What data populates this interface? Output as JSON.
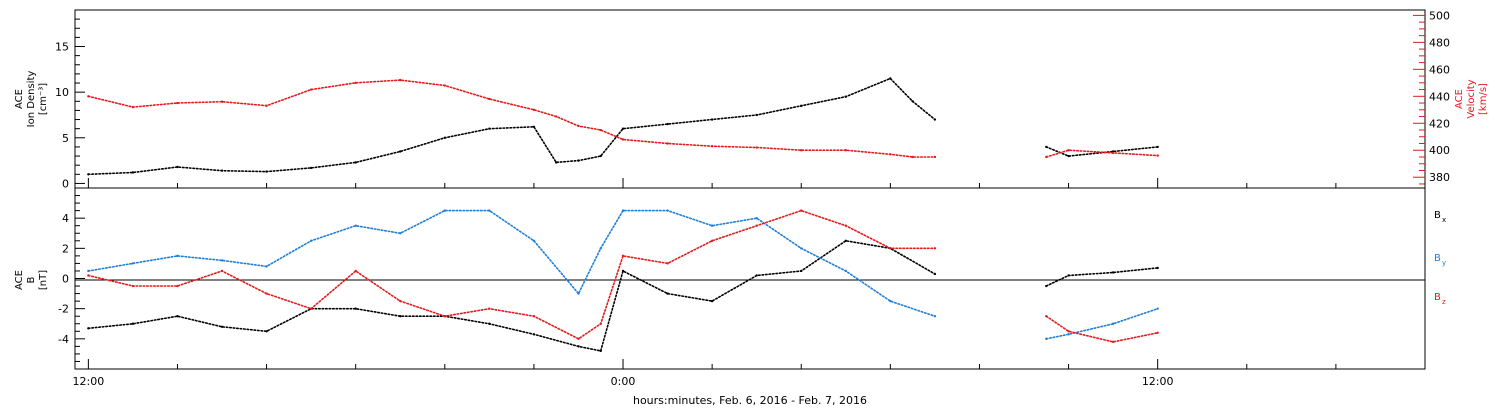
{
  "colors": {
    "density": "#000000",
    "velocity": "#e41a1c",
    "bx": "#000000",
    "by": "#1f7fd8",
    "bz": "#e41a1c"
  },
  "xaxis": {
    "label": "hours:minutes, Feb.  6, 2016 - Feb.  7, 2016",
    "major_ticks": [
      {
        "hours": 0,
        "label": "12:00"
      },
      {
        "hours": 12,
        "label": "0:00"
      },
      {
        "hours": 24,
        "label": "12:00"
      }
    ],
    "minor_tick_step_hours": 2
  },
  "top_panel": {
    "ylabel_left": [
      "ACE",
      "Ion Density",
      "[cm⁻³]"
    ],
    "ylabel_right": [
      "ACE",
      "Velocity",
      "[km/s]"
    ],
    "left_ticks": [
      "0",
      "5",
      "10",
      "15"
    ],
    "right_ticks": [
      "380",
      "400",
      "420",
      "440",
      "460",
      "480",
      "500"
    ]
  },
  "bottom_panel": {
    "ylabel": [
      "ACE",
      "B",
      "[nT]"
    ],
    "ticks": [
      "-4",
      "-2",
      "0",
      "2",
      "4"
    ],
    "legend": [
      "B",
      "B",
      "B"
    ],
    "legend_subscripts": [
      "x",
      "y",
      "z"
    ]
  },
  "chart_data": [
    {
      "type": "scatter",
      "panel": "top",
      "x_unit": "hours since Feb 6 12:00",
      "xlim": [
        -0.3,
        30.0
      ],
      "ylim_left": [
        -0.5,
        19
      ],
      "ylim_right": [
        372,
        504
      ],
      "series": [
        {
          "key": "density",
          "axis": "left",
          "x": [
            0,
            1,
            2,
            3,
            4,
            5,
            6,
            7,
            8,
            9,
            10,
            10.5,
            11,
            11.5,
            12,
            13,
            14,
            15,
            16,
            17,
            18,
            18.5,
            19,
            21.5,
            22,
            23,
            24
          ],
          "y": [
            1.0,
            1.2,
            1.8,
            1.4,
            1.3,
            1.7,
            2.3,
            3.5,
            5.0,
            6.0,
            6.2,
            2.3,
            2.5,
            3.0,
            6.0,
            6.5,
            7.0,
            7.5,
            8.5,
            9.5,
            11.5,
            9.0,
            7.0,
            4.0,
            3.0,
            3.5,
            4.0
          ]
        },
        {
          "key": "velocity",
          "axis": "right",
          "x": [
            0,
            1,
            2,
            3,
            4,
            5,
            6,
            7,
            8,
            9,
            10,
            10.5,
            11,
            11.5,
            12,
            13,
            14,
            15,
            16,
            17,
            18,
            18.5,
            19,
            21.5,
            22,
            23,
            24
          ],
          "y": [
            440,
            432,
            435,
            436,
            433,
            445,
            450,
            452,
            448,
            438,
            430,
            425,
            418,
            415,
            408,
            405,
            403,
            402,
            400,
            400,
            397,
            395,
            395,
            395,
            400,
            398,
            396
          ]
        }
      ],
      "gaps": [
        [
          19.0,
          21.5
        ]
      ]
    },
    {
      "type": "scatter",
      "panel": "bottom",
      "x_unit": "hours since Feb 6 12:00",
      "xlim": [
        -0.3,
        30.0
      ],
      "ylim": [
        -6,
        6
      ],
      "series": [
        {
          "key": "bx",
          "legend_index": 0,
          "x": [
            0,
            1,
            2,
            3,
            4,
            5,
            6,
            7,
            8,
            9,
            10,
            11,
            11.5,
            12,
            13,
            14,
            15,
            16,
            17,
            18,
            19,
            21.5,
            22,
            23,
            24
          ],
          "y": [
            -3.3,
            -3.0,
            -2.5,
            -3.2,
            -3.5,
            -2.0,
            -2.0,
            -2.5,
            -2.5,
            -3.0,
            -3.7,
            -4.5,
            -4.8,
            0.5,
            -1.0,
            -1.5,
            0.2,
            0.5,
            2.5,
            2.0,
            0.3,
            -0.5,
            0.2,
            0.4,
            0.7
          ]
        },
        {
          "key": "by",
          "legend_index": 1,
          "x": [
            0,
            1,
            2,
            3,
            4,
            5,
            6,
            7,
            8,
            9,
            10,
            11,
            11.5,
            12,
            13,
            14,
            15,
            16,
            17,
            18,
            19,
            21.5,
            22,
            23,
            24
          ],
          "y": [
            0.5,
            1.0,
            1.5,
            1.2,
            0.8,
            2.5,
            3.5,
            3.0,
            4.5,
            4.5,
            2.5,
            -1.0,
            2.0,
            4.5,
            4.5,
            3.5,
            4.0,
            2.0,
            0.5,
            -1.5,
            -2.5,
            -4.0,
            -3.7,
            -3.0,
            -2.0
          ]
        },
        {
          "key": "bz",
          "legend_index": 2,
          "x": [
            0,
            1,
            2,
            3,
            4,
            5,
            6,
            7,
            8,
            9,
            10,
            11,
            11.5,
            12,
            13,
            14,
            15,
            16,
            17,
            18,
            19,
            21.5,
            22,
            23,
            24
          ],
          "y": [
            0.2,
            -0.5,
            -0.5,
            0.5,
            -1.0,
            -2.0,
            0.5,
            -1.5,
            -2.5,
            -2.0,
            -2.5,
            -4.0,
            -3.0,
            1.5,
            1.0,
            2.5,
            3.5,
            4.5,
            3.5,
            2.0,
            2.0,
            -2.5,
            -3.5,
            -4.2,
            -3.6
          ]
        }
      ],
      "gaps": [
        [
          19.0,
          21.5
        ]
      ]
    }
  ]
}
